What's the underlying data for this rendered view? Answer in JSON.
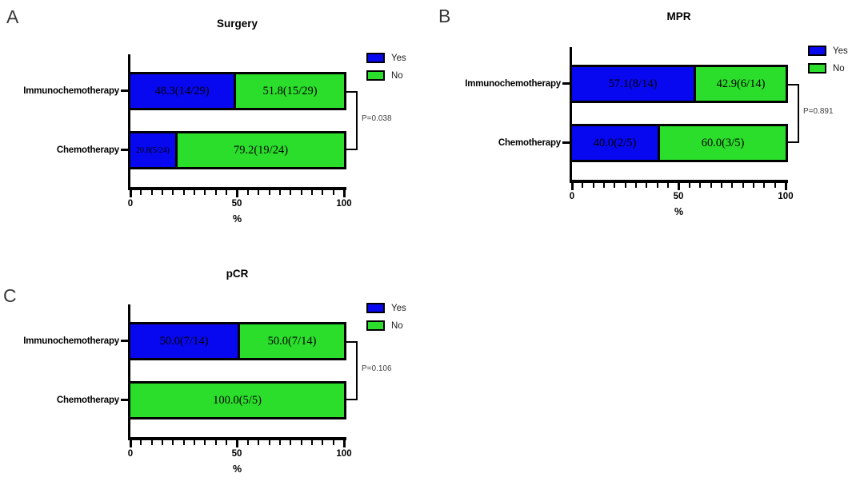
{
  "page": {
    "background": "#ffffff",
    "panel_letters": [
      "A",
      "B",
      "C"
    ]
  },
  "colors": {
    "yes_fill": "#0808f0",
    "no_fill": "#2bde2b",
    "bar_border": "#000000",
    "axis": "#000000",
    "p_value_text": "#3f3f3f",
    "label_text": "#000000"
  },
  "legend": {
    "items": [
      {
        "label": "Yes",
        "key": "yes"
      },
      {
        "label": "No",
        "key": "no"
      }
    ]
  },
  "chart_data": [
    {
      "type": "bar",
      "subtype": "horizontal-stacked-100pct",
      "panel": "A",
      "title": "Surgery",
      "categories": [
        "Immunochemotherapy",
        "Chemotherapy"
      ],
      "series": [
        {
          "name": "Yes",
          "values": [
            48.3,
            20.8
          ],
          "labels": [
            "48.3(14/29)",
            "20.8(5/24)"
          ]
        },
        {
          "name": "No",
          "values": [
            51.8,
            79.2
          ],
          "labels": [
            "51.8(15/29)",
            "79.2(19/24)"
          ]
        }
      ],
      "p_value": "P=0.038",
      "xlabel": "%",
      "xlim": [
        0,
        100
      ],
      "xticks": [
        "0",
        "50",
        "100"
      ],
      "minor_tick_step": 5,
      "legend_position": "top-right",
      "grid": false
    },
    {
      "type": "bar",
      "subtype": "horizontal-stacked-100pct",
      "panel": "B",
      "title": "MPR",
      "categories": [
        "Immunochemotherapy",
        "Chemotherapy"
      ],
      "series": [
        {
          "name": "Yes",
          "values": [
            57.1,
            40.0
          ],
          "labels": [
            "57.1(8/14)",
            "40.0(2/5)"
          ]
        },
        {
          "name": "No",
          "values": [
            42.9,
            60.0
          ],
          "labels": [
            "42.9(6/14)",
            "60.0(3/5)"
          ]
        }
      ],
      "p_value": "P=0.891",
      "xlabel": "%",
      "xlim": [
        0,
        100
      ],
      "xticks": [
        "0",
        "50",
        "100"
      ],
      "minor_tick_step": 5,
      "legend_position": "top-right",
      "grid": false
    },
    {
      "type": "bar",
      "subtype": "horizontal-stacked-100pct",
      "panel": "C",
      "title": "pCR",
      "categories": [
        "Immunochemotherapy",
        "Chemotherapy"
      ],
      "series": [
        {
          "name": "Yes",
          "values": [
            50.0,
            0
          ],
          "labels": [
            "50.0(7/14)",
            ""
          ]
        },
        {
          "name": "No",
          "values": [
            50.0,
            100.0
          ],
          "labels": [
            "50.0(7/14)",
            "100.0(5/5)"
          ]
        }
      ],
      "p_value": "P=0.106",
      "xlabel": "%",
      "xlim": [
        0,
        100
      ],
      "xticks": [
        "0",
        "50",
        "100"
      ],
      "minor_tick_step": 5,
      "legend_position": "top-right",
      "grid": false
    }
  ]
}
